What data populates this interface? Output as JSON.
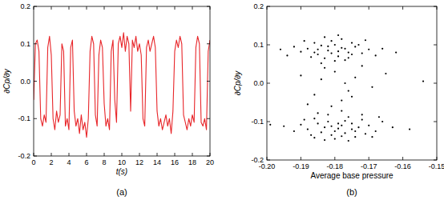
{
  "chart_data": [
    {
      "type": "line",
      "title": "(a)",
      "x_label": "t(s)",
      "y_label": "∂Cp/∂y",
      "color": "#e8262a",
      "xlim": [
        0,
        20
      ],
      "xticks": [
        0,
        2,
        4,
        6,
        8,
        10,
        12,
        14,
        16,
        18,
        20
      ],
      "ylim": [
        -0.2,
        0.2
      ],
      "yticks": [
        -0.2,
        -0.1,
        {
          "value": 0,
          "label": "0.0"
        },
        0.1,
        0.2
      ],
      "x": [
        0.0,
        0.2,
        0.4,
        0.6,
        0.8,
        1.0,
        1.2,
        1.4,
        1.6,
        1.8,
        2.0,
        2.2,
        2.4,
        2.6,
        2.8,
        3.0,
        3.2,
        3.4,
        3.6,
        3.8,
        4.0,
        4.2,
        4.4,
        4.6,
        4.8,
        5.0,
        5.2,
        5.4,
        5.6,
        5.8,
        6.0,
        6.2,
        6.4,
        6.6,
        6.8,
        7.0,
        7.2,
        7.4,
        7.6,
        7.8,
        8.0,
        8.2,
        8.4,
        8.6,
        8.8,
        9.0,
        9.2,
        9.4,
        9.6,
        9.8,
        10.0,
        10.2,
        10.4,
        10.6,
        10.8,
        11.0,
        11.2,
        11.4,
        11.6,
        11.8,
        12.0,
        12.2,
        12.4,
        12.6,
        12.8,
        13.0,
        13.2,
        13.4,
        13.6,
        13.8,
        14.0,
        14.2,
        14.4,
        14.6,
        14.8,
        15.0,
        15.2,
        15.4,
        15.6,
        15.8,
        16.0,
        16.2,
        16.4,
        16.6,
        16.8,
        17.0,
        17.2,
        17.4,
        17.6,
        17.8,
        18.0,
        18.2,
        18.4,
        18.6,
        18.8,
        19.0,
        19.2,
        19.4,
        19.6,
        19.8,
        20.0
      ],
      "values": [
        -0.05,
        0.1,
        0.11,
        0.08,
        -0.1,
        -0.12,
        -0.09,
        -0.11,
        0.09,
        0.12,
        0.07,
        -0.1,
        -0.13,
        -0.08,
        -0.11,
        -0.09,
        0.1,
        0.08,
        -0.12,
        -0.1,
        -0.13,
        0.09,
        0.11,
        -0.08,
        -0.12,
        -0.1,
        -0.14,
        -0.09,
        -0.13,
        -0.11,
        -0.15,
        -0.1,
        0.08,
        0.12,
        0.1,
        -0.09,
        -0.12,
        0.07,
        0.11,
        0.09,
        -0.06,
        -0.12,
        -0.1,
        -0.13,
        0.08,
        0.11,
        -0.05,
        -0.11,
        0.1,
        0.12,
        0.09,
        0.13,
        0.08,
        0.12,
        0.1,
        -0.08,
        0.11,
        0.09,
        0.12,
        0.08,
        0.1,
        0.07,
        -0.1,
        -0.12,
        0.09,
        0.11,
        0.08,
        0.1,
        0.12,
        0.09,
        -0.08,
        -0.12,
        -0.1,
        -0.13,
        -0.11,
        -0.09,
        -0.12,
        -0.1,
        -0.14,
        -0.08,
        0.08,
        0.11,
        0.09,
        0.12,
        0.1,
        -0.09,
        -0.11,
        -0.13,
        -0.1,
        -0.12,
        -0.09,
        -0.11,
        0.09,
        0.12,
        0.1,
        -0.11,
        -0.12,
        -0.1,
        -0.13,
        0.08,
        0.11
      ]
    },
    {
      "type": "scatter",
      "title": "(b)",
      "x_label": "Average base pressure",
      "y_label": "∂Cp/∂y",
      "color": "#000000",
      "marker": "circle",
      "xlim": [
        -0.2,
        -0.15
      ],
      "xticks": [
        {
          "value": -0.2,
          "label": "-0.20"
        },
        -0.19,
        -0.18,
        -0.17,
        -0.16,
        -0.15
      ],
      "ylim": [
        -0.2,
        0.2
      ],
      "yticks": [
        -0.2,
        -0.1,
        {
          "value": 0,
          "label": "0.0"
        },
        0.1,
        0.2
      ],
      "x": [
        -0.182,
        -0.178,
        -0.185,
        -0.176,
        -0.18,
        -0.188,
        -0.172,
        -0.183,
        -0.179,
        -0.186,
        -0.174,
        -0.181,
        -0.19,
        -0.177,
        -0.184,
        -0.17,
        -0.187,
        -0.175,
        -0.181,
        -0.178,
        -0.192,
        -0.168,
        -0.183,
        -0.176,
        -0.185,
        -0.179,
        -0.173,
        -0.189,
        -0.18,
        -0.171,
        -0.186,
        -0.177,
        -0.182,
        -0.175,
        -0.194,
        -0.166,
        -0.184,
        -0.179,
        -0.162,
        -0.196,
        -0.178,
        -0.182,
        -0.175,
        -0.18,
        -0.185,
        -0.172,
        -0.177,
        -0.183,
        -0.17,
        -0.188,
        -0.176,
        -0.181,
        -0.174,
        -0.186,
        -0.179,
        -0.168,
        -0.184,
        -0.173,
        -0.19,
        -0.177,
        -0.18,
        -0.171,
        -0.187,
        -0.175,
        -0.182,
        -0.166,
        -0.179,
        -0.192,
        -0.176,
        -0.169,
        -0.185,
        -0.174,
        -0.181,
        -0.163,
        -0.189,
        -0.178,
        -0.172,
        -0.195,
        -0.183,
        -0.167,
        -0.178,
        -0.158,
        -0.186,
        -0.199,
        -0.154,
        -0.18,
        -0.176,
        -0.184,
        -0.172,
        -0.178,
        -0.186,
        -0.174,
        -0.181,
        -0.169,
        -0.183,
        -0.177,
        -0.19,
        -0.175,
        -0.165,
        -0.188
      ],
      "values": [
        0.085,
        0.092,
        0.075,
        0.08,
        0.1,
        0.09,
        0.078,
        0.065,
        0.07,
        0.105,
        0.095,
        0.11,
        0.082,
        0.06,
        0.098,
        0.088,
        0.068,
        0.105,
        0.078,
        0.115,
        0.095,
        0.072,
        0.12,
        0.066,
        0.088,
        0.083,
        0.1,
        0.11,
        0.058,
        0.112,
        0.08,
        0.09,
        0.096,
        0.075,
        0.072,
        0.09,
        0.052,
        0.125,
        0.08,
        0.088,
        -0.11,
        -0.1,
        -0.12,
        -0.125,
        -0.105,
        -0.095,
        -0.13,
        -0.115,
        -0.11,
        -0.12,
        -0.088,
        -0.135,
        -0.14,
        -0.092,
        -0.105,
        -0.125,
        -0.128,
        -0.115,
        -0.108,
        -0.098,
        -0.145,
        -0.132,
        -0.135,
        -0.105,
        -0.082,
        -0.1,
        -0.118,
        -0.125,
        -0.15,
        -0.14,
        -0.078,
        -0.125,
        -0.112,
        -0.115,
        -0.095,
        -0.138,
        -0.082,
        -0.112,
        -0.148,
        -0.088,
        -0.072,
        -0.12,
        -0.142,
        -0.108,
        0.005,
        0.03,
        -0.02,
        0.01,
        0.045,
        -0.045,
        -0.03,
        0.015,
        -0.06,
        -0.01,
        0.04,
        0.0,
        0.02,
        -0.035,
        0.025,
        -0.055
      ]
    }
  ]
}
